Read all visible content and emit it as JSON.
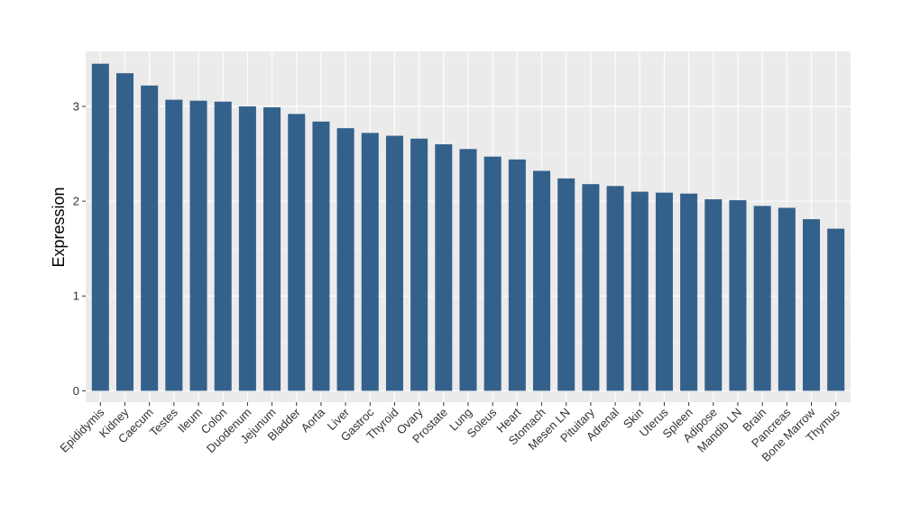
{
  "chart_data": {
    "type": "bar",
    "title": "",
    "xlabel": "",
    "ylabel": "Expression",
    "ylim": [
      -0.12,
      3.58
    ],
    "yticks": [
      0,
      1,
      2,
      3
    ],
    "grid": true,
    "legend": "none",
    "colors": {
      "bar": "#34618b",
      "panel": "#ebebeb",
      "grid_major": "#ffffff",
      "text": "#333333"
    },
    "categories": [
      "Epididymis",
      "Kidney",
      "Caecum",
      "Testes",
      "Ileum",
      "Colon",
      "Duodenum",
      "Jejunum",
      "Bladder",
      "Aorta",
      "Liver",
      "Gastroc",
      "Thyroid",
      "Ovary",
      "Prostate",
      "Lung",
      "Soleus",
      "Heart",
      "Stomach",
      "Mesen LN",
      "Pituitary",
      "Adrenal",
      "Skin",
      "Uterus",
      "Spleen",
      "Adipose",
      "Mandib LN",
      "Brain",
      "Pancreas",
      "Bone Marrow",
      "Thymus"
    ],
    "values": [
      3.45,
      3.35,
      3.22,
      3.07,
      3.06,
      3.05,
      3.0,
      2.99,
      2.92,
      2.84,
      2.77,
      2.72,
      2.69,
      2.66,
      2.6,
      2.55,
      2.47,
      2.44,
      2.32,
      2.24,
      2.18,
      2.16,
      2.1,
      2.09,
      2.08,
      2.02,
      2.01,
      1.95,
      1.93,
      1.81,
      1.71
    ]
  }
}
